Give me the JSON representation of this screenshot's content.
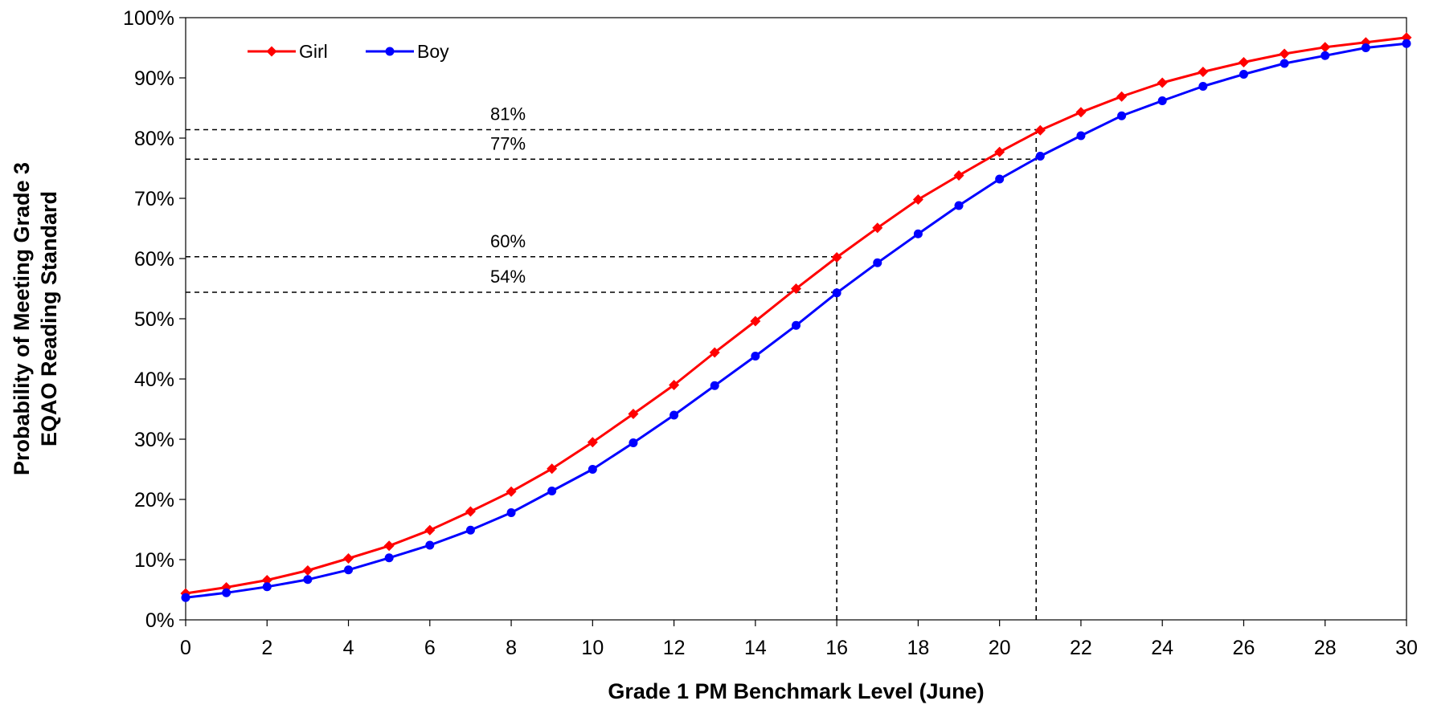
{
  "chart_data": {
    "type": "line",
    "xlabel": "Grade 1 PM Benchmark Level (June)",
    "ylabel_lines": [
      "Probability of Meeting Grade 3",
      "EQAO Reading Standard"
    ],
    "xlim": [
      0,
      30
    ],
    "ylim": [
      0,
      100
    ],
    "x_ticks": [
      0,
      2,
      4,
      6,
      8,
      10,
      12,
      14,
      16,
      18,
      20,
      22,
      24,
      26,
      28,
      30
    ],
    "y_ticks": [
      0,
      10,
      20,
      30,
      40,
      50,
      60,
      70,
      80,
      90,
      100
    ],
    "y_tick_labels": [
      "0%",
      "10%",
      "20%",
      "30%",
      "40%",
      "50%",
      "60%",
      "70%",
      "80%",
      "90%",
      "100%"
    ],
    "x_tick_labels": [
      "0",
      "2",
      "4",
      "6",
      "8",
      "10",
      "12",
      "14",
      "16",
      "18",
      "20",
      "22",
      "24",
      "26",
      "28",
      "30"
    ],
    "legend_position": "top-left",
    "grid": false,
    "x": [
      0,
      1,
      2,
      3,
      4,
      5,
      6,
      7,
      8,
      9,
      10,
      11,
      12,
      13,
      14,
      15,
      16,
      17,
      18,
      19,
      20,
      21,
      22,
      23,
      24,
      25,
      26,
      27,
      28,
      29,
      30
    ],
    "series": [
      {
        "name": "Girl",
        "color": "#ff0000",
        "marker": "diamond",
        "values": [
          4.4,
          5.4,
          6.6,
          8.2,
          10.2,
          12.3,
          14.9,
          18.0,
          21.3,
          25.1,
          29.5,
          34.2,
          39.0,
          44.4,
          49.6,
          55.0,
          60.2,
          65.1,
          69.8,
          73.8,
          77.7,
          81.3,
          84.3,
          86.9,
          89.2,
          91.0,
          92.6,
          94.0,
          95.1,
          95.9,
          96.7
        ]
      },
      {
        "name": "Boy",
        "color": "#0000ff",
        "marker": "circle",
        "values": [
          3.7,
          4.5,
          5.5,
          6.7,
          8.3,
          10.3,
          12.4,
          14.9,
          17.8,
          21.4,
          25.0,
          29.4,
          34.0,
          38.9,
          43.8,
          48.9,
          54.3,
          59.3,
          64.1,
          68.8,
          73.2,
          77.0,
          80.4,
          83.7,
          86.2,
          88.6,
          90.6,
          92.4,
          93.7,
          95.0,
          95.7
        ]
      }
    ],
    "reference_lines": [
      {
        "label": "81%",
        "y": 81.4,
        "x_end": 20.9
      },
      {
        "label": "77%",
        "y": 76.5,
        "x_end": 20.9
      },
      {
        "label": "60%",
        "y": 60.3,
        "x_end": 16
      },
      {
        "label": "54%",
        "y": 54.4,
        "x_end": 16
      }
    ],
    "vertical_reference_lines": [
      {
        "x": 16,
        "y_end": 60.3
      },
      {
        "x": 20.9,
        "y_end": 81.4
      }
    ]
  }
}
